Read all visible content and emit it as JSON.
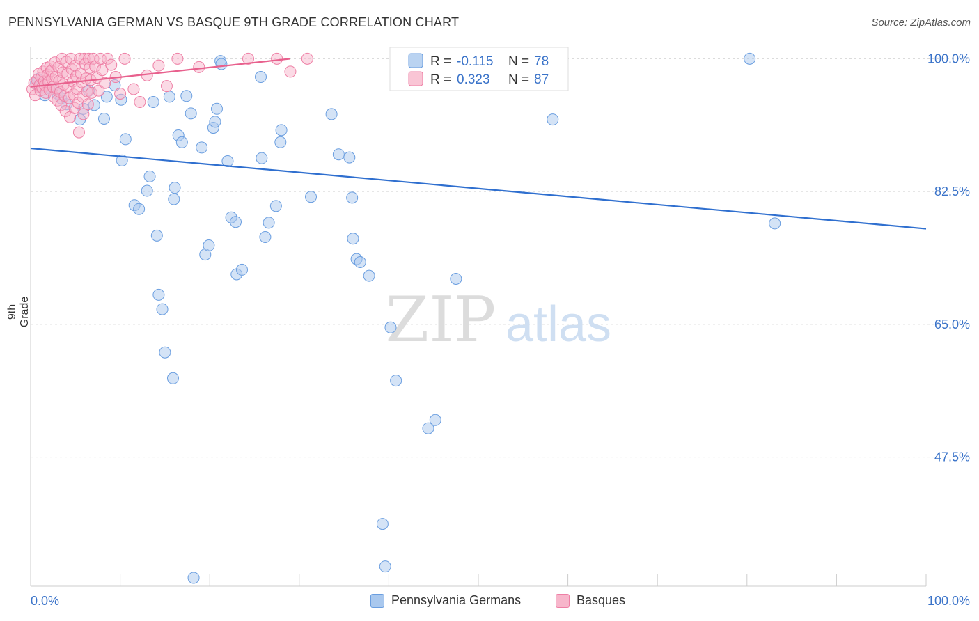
{
  "title": "PENNSYLVANIA GERMAN VS BASQUE 9TH GRADE CORRELATION CHART",
  "source": "Source: ZipAtlas.com",
  "watermark": {
    "zip": "ZIP",
    "atlas": "atlas"
  },
  "colors": {
    "blue_fill": "#a9c8ee",
    "blue_stroke": "#6a9ee0",
    "blue_line": "#2f6fcf",
    "pink_fill": "#f7b6cb",
    "pink_stroke": "#ee7fa5",
    "pink_line": "#e8608d",
    "axis_label": "#3a73c9",
    "grid": "#d6d6d6"
  },
  "legend_stats": [
    {
      "r_label": "R =",
      "r_value": "-0.115",
      "n_label": "N =",
      "n_value": "78",
      "color": "blue"
    },
    {
      "r_label": "R =",
      "r_value": "0.323",
      "n_label": "N =",
      "n_value": "87",
      "color": "pink"
    }
  ],
  "chart_data": {
    "type": "scatter",
    "title": "PENNSYLVANIA GERMAN VS BASQUE 9TH GRADE CORRELATION CHART",
    "xlabel": "",
    "ylabel": "9th Grade",
    "xlim": [
      0,
      100
    ],
    "ylim": [
      30.5,
      101.5
    ],
    "x_tick_labels": [
      "0.0%",
      "100.0%"
    ],
    "y_ticks": [
      100.0,
      82.5,
      65.0,
      47.5
    ],
    "y_tick_labels": [
      "100.0%",
      "82.5%",
      "65.0%",
      "47.5%"
    ],
    "grid": true,
    "legend": "bottom-center",
    "series": [
      {
        "name": "Pennsylvania Germans",
        "color": "#a9c8ee",
        "trend": {
          "x": [
            0,
            100
          ],
          "y": [
            88.2,
            77.6
          ]
        },
        "points": [
          [
            0.6,
            96.8
          ],
          [
            0.8,
            97.3
          ],
          [
            1.0,
            96.3
          ],
          [
            1.6,
            95.2
          ],
          [
            2.3,
            96.0
          ],
          [
            3.0,
            95.4
          ],
          [
            3.4,
            94.8
          ],
          [
            4.0,
            94.0
          ],
          [
            5.5,
            92.0
          ],
          [
            5.9,
            93.4
          ],
          [
            6.5,
            95.8
          ],
          [
            7.1,
            93.9
          ],
          [
            8.2,
            92.1
          ],
          [
            8.5,
            95.0
          ],
          [
            9.4,
            96.5
          ],
          [
            10.1,
            94.6
          ],
          [
            10.2,
            86.6
          ],
          [
            10.6,
            89.4
          ],
          [
            11.6,
            80.7
          ],
          [
            12.1,
            80.2
          ],
          [
            13.0,
            82.6
          ],
          [
            13.3,
            84.5
          ],
          [
            13.7,
            94.3
          ],
          [
            14.1,
            76.7
          ],
          [
            14.3,
            68.9
          ],
          [
            14.7,
            67.0
          ],
          [
            15.0,
            61.3
          ],
          [
            15.5,
            95.0
          ],
          [
            15.9,
            57.9
          ],
          [
            16.0,
            81.5
          ],
          [
            16.1,
            83.0
          ],
          [
            16.5,
            89.9
          ],
          [
            16.9,
            89.0
          ],
          [
            17.4,
            95.1
          ],
          [
            17.9,
            92.8
          ],
          [
            18.2,
            31.6
          ],
          [
            19.1,
            88.3
          ],
          [
            19.5,
            74.2
          ],
          [
            19.9,
            75.4
          ],
          [
            20.4,
            90.9
          ],
          [
            20.6,
            91.7
          ],
          [
            20.8,
            93.4
          ],
          [
            21.2,
            99.7
          ],
          [
            21.3,
            99.3
          ],
          [
            22.0,
            86.5
          ],
          [
            22.4,
            79.1
          ],
          [
            22.9,
            78.5
          ],
          [
            23.0,
            71.6
          ],
          [
            23.6,
            72.2
          ],
          [
            25.7,
            97.6
          ],
          [
            25.8,
            86.9
          ],
          [
            26.2,
            76.5
          ],
          [
            26.6,
            78.4
          ],
          [
            27.4,
            80.6
          ],
          [
            27.9,
            89.0
          ],
          [
            28.0,
            90.6
          ],
          [
            31.3,
            81.8
          ],
          [
            33.6,
            92.7
          ],
          [
            34.4,
            87.4
          ],
          [
            35.6,
            87.0
          ],
          [
            35.9,
            81.7
          ],
          [
            36.0,
            76.3
          ],
          [
            36.4,
            73.6
          ],
          [
            36.8,
            73.2
          ],
          [
            37.8,
            71.4
          ],
          [
            39.3,
            38.7
          ],
          [
            39.6,
            33.1
          ],
          [
            40.2,
            64.6
          ],
          [
            40.8,
            57.6
          ],
          [
            44.4,
            51.3
          ],
          [
            45.2,
            52.4
          ],
          [
            47.5,
            71.0
          ],
          [
            50.0,
            98.5
          ],
          [
            54.7,
            100.0
          ],
          [
            54.8,
            99.6
          ],
          [
            58.3,
            92.0
          ],
          [
            80.3,
            100.0
          ],
          [
            83.1,
            78.3
          ]
        ]
      },
      {
        "name": "Basques",
        "color": "#f7b6cb",
        "trend": {
          "x": [
            0,
            29
          ],
          "y": [
            96.3,
            100.0
          ]
        },
        "points": [
          [
            0.2,
            96.0
          ],
          [
            0.4,
            96.8
          ],
          [
            0.5,
            95.2
          ],
          [
            0.7,
            97.2
          ],
          [
            0.9,
            98.0
          ],
          [
            1.0,
            96.5
          ],
          [
            1.1,
            95.8
          ],
          [
            1.2,
            97.5
          ],
          [
            1.3,
            96.2
          ],
          [
            1.4,
            98.3
          ],
          [
            1.5,
            97.0
          ],
          [
            1.6,
            96.5
          ],
          [
            1.7,
            95.5
          ],
          [
            1.8,
            98.8
          ],
          [
            1.9,
            97.9
          ],
          [
            2.0,
            96.9
          ],
          [
            2.1,
            95.9
          ],
          [
            2.2,
            99.0
          ],
          [
            2.3,
            98.4
          ],
          [
            2.4,
            97.3
          ],
          [
            2.5,
            96.3
          ],
          [
            2.6,
            95.0
          ],
          [
            2.7,
            99.5
          ],
          [
            2.8,
            97.6
          ],
          [
            2.9,
            96.1
          ],
          [
            3.0,
            94.5
          ],
          [
            3.1,
            98.9
          ],
          [
            3.2,
            97.1
          ],
          [
            3.3,
            95.6
          ],
          [
            3.4,
            93.9
          ],
          [
            3.5,
            100.0
          ],
          [
            3.6,
            98.2
          ],
          [
            3.7,
            96.6
          ],
          [
            3.8,
            95.1
          ],
          [
            3.9,
            93.1
          ],
          [
            4.0,
            99.6
          ],
          [
            4.1,
            98.0
          ],
          [
            4.2,
            96.3
          ],
          [
            4.3,
            94.8
          ],
          [
            4.4,
            92.3
          ],
          [
            4.5,
            100.0
          ],
          [
            4.6,
            98.6
          ],
          [
            4.7,
            97.0
          ],
          [
            4.8,
            95.3
          ],
          [
            4.9,
            93.5
          ],
          [
            5.0,
            99.1
          ],
          [
            5.1,
            97.7
          ],
          [
            5.2,
            96.0
          ],
          [
            5.3,
            94.2
          ],
          [
            5.4,
            90.3
          ],
          [
            5.5,
            100.0
          ],
          [
            5.6,
            98.1
          ],
          [
            5.7,
            96.9
          ],
          [
            5.8,
            95.0
          ],
          [
            5.9,
            92.7
          ],
          [
            6.0,
            100.0
          ],
          [
            6.1,
            99.3
          ],
          [
            6.2,
            97.4
          ],
          [
            6.3,
            95.7
          ],
          [
            6.4,
            94.0
          ],
          [
            6.5,
            100.0
          ],
          [
            6.6,
            98.8
          ],
          [
            6.7,
            97.2
          ],
          [
            6.8,
            95.5
          ],
          [
            7.0,
            100.0
          ],
          [
            7.2,
            99.0
          ],
          [
            7.4,
            97.5
          ],
          [
            7.6,
            95.8
          ],
          [
            7.8,
            100.0
          ],
          [
            8.0,
            98.5
          ],
          [
            8.3,
            96.8
          ],
          [
            8.6,
            100.0
          ],
          [
            9.0,
            99.2
          ],
          [
            9.5,
            97.6
          ],
          [
            10.0,
            95.4
          ],
          [
            10.5,
            100.0
          ],
          [
            11.5,
            96.0
          ],
          [
            12.2,
            94.3
          ],
          [
            13.0,
            97.8
          ],
          [
            14.3,
            99.1
          ],
          [
            15.2,
            96.4
          ],
          [
            16.4,
            100.0
          ],
          [
            18.8,
            98.9
          ],
          [
            24.3,
            100.0
          ],
          [
            27.5,
            100.0
          ],
          [
            29.0,
            98.3
          ],
          [
            30.9,
            100.0
          ]
        ]
      }
    ]
  }
}
